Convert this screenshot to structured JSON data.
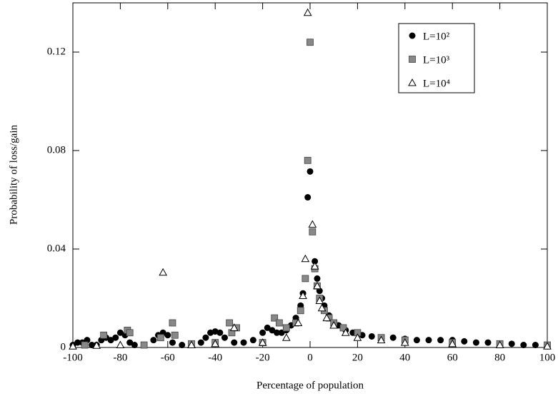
{
  "chart_data": {
    "type": "scatter",
    "xlabel": "Percentage of population",
    "ylabel": "Probability of loss/gain",
    "xlim": [
      -100,
      100
    ],
    "xticks": [
      -100,
      -80,
      -60,
      -40,
      -20,
      0,
      20,
      40,
      60,
      80,
      100
    ],
    "ylim": [
      0,
      0.14
    ],
    "yticks": [
      0,
      0.04,
      0.08,
      0.12
    ],
    "legend": "upper right",
    "series": [
      {
        "name": "L=10²",
        "marker": "circle",
        "color": "#000000",
        "x": [
          -100,
          -98,
          -96,
          -94,
          -92,
          -90,
          -88,
          -86,
          -84,
          -82,
          -80,
          -78,
          -76,
          -74,
          -70,
          -66,
          -64,
          -62,
          -60,
          -58,
          -54,
          -50,
          -46,
          -44,
          -42,
          -40,
          -38,
          -36,
          -32,
          -28,
          -24,
          -20,
          -18,
          -16,
          -14,
          -12,
          -10,
          -8,
          -6,
          -4,
          -3,
          -2,
          -1,
          0,
          2,
          3,
          4,
          5,
          6,
          8,
          10,
          12,
          15,
          18,
          22,
          26,
          30,
          35,
          40,
          45,
          50,
          55,
          60,
          65,
          70,
          75,
          80,
          85,
          90,
          95,
          100
        ],
        "values": [
          0.001,
          0.002,
          0.002,
          0.003,
          0.001,
          0.001,
          0.003,
          0.004,
          0.003,
          0.004,
          0.006,
          0.005,
          0.002,
          0.001,
          0.001,
          0.003,
          0.005,
          0.006,
          0.005,
          0.002,
          0.001,
          0.001,
          0.002,
          0.004,
          0.006,
          0.0065,
          0.006,
          0.004,
          0.002,
          0.002,
          0.003,
          0.006,
          0.008,
          0.007,
          0.006,
          0.006,
          0.007,
          0.009,
          0.012,
          0.017,
          0.022,
          0.028,
          0.061,
          0.0715,
          0.035,
          0.028,
          0.023,
          0.02,
          0.017,
          0.013,
          0.01,
          0.009,
          0.007,
          0.006,
          0.005,
          0.0045,
          0.004,
          0.004,
          0.0035,
          0.003,
          0.003,
          0.003,
          0.003,
          0.0025,
          0.002,
          0.002,
          0.0015,
          0.0015,
          0.001,
          0.001,
          0.0005
        ]
      },
      {
        "name": "L=10³",
        "marker": "square",
        "color": "#888888",
        "x": [
          -95,
          -87,
          -77,
          -76,
          -70,
          -63,
          -58,
          -57,
          -50,
          -40,
          -34,
          -33,
          -31,
          -20,
          -15,
          -13,
          -10,
          -6,
          -4,
          -2,
          -1,
          0,
          1,
          2,
          3,
          4,
          6,
          8,
          10,
          14,
          20,
          30,
          40,
          60,
          80,
          100
        ],
        "values": [
          0.001,
          0.005,
          0.007,
          0.006,
          0.001,
          0.004,
          0.01,
          0.005,
          0.0015,
          0.002,
          0.01,
          0.006,
          0.008,
          0.002,
          0.012,
          0.01,
          0.008,
          0.01,
          0.015,
          0.028,
          0.076,
          0.124,
          0.047,
          0.032,
          0.025,
          0.02,
          0.015,
          0.012,
          0.01,
          0.008,
          0.006,
          0.004,
          0.003,
          0.002,
          0.0015,
          0.001
        ]
      },
      {
        "name": "L=10⁴",
        "marker": "triangle",
        "color": "#000000",
        "x": [
          -100,
          -90,
          -80,
          -62,
          -50,
          -40,
          -32,
          -20,
          -10,
          -5,
          -3,
          -2,
          -1,
          1,
          2,
          3,
          4,
          5,
          7,
          10,
          15,
          20,
          30,
          40,
          60,
          80,
          100
        ],
        "values": [
          0.0005,
          0.0008,
          0.001,
          0.0305,
          0.001,
          0.0015,
          0.008,
          0.002,
          0.004,
          0.01,
          0.021,
          0.036,
          0.136,
          0.05,
          0.033,
          0.025,
          0.019,
          0.016,
          0.012,
          0.009,
          0.006,
          0.004,
          0.003,
          0.002,
          0.0015,
          0.001,
          0.0005
        ]
      }
    ]
  }
}
